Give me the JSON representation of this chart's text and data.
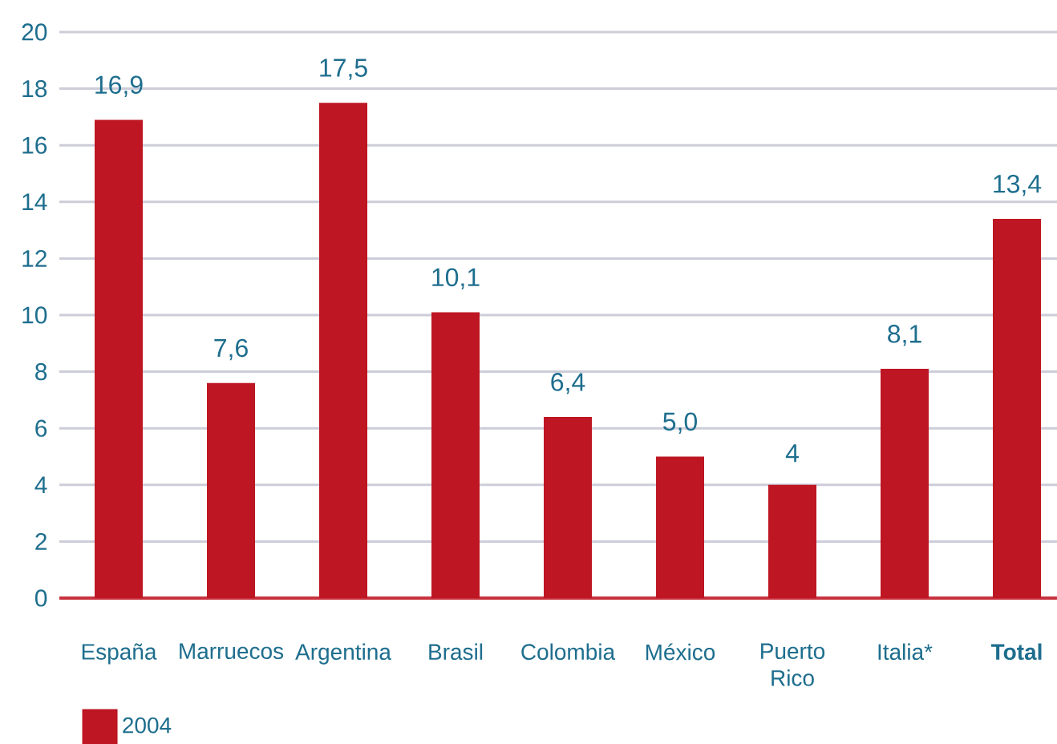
{
  "chart_data": {
    "type": "bar",
    "categories": [
      "España",
      "Marruecos",
      "Argentina",
      "Brasil",
      "Colombia",
      "México",
      "Puerto Rico",
      "Italia*",
      "**Total**"
    ],
    "series": [
      {
        "name": "2004",
        "color": "#be1622",
        "values": [
          16.9,
          7.6,
          17.5,
          10.1,
          6.4,
          5.0,
          4,
          8.1,
          13.4
        ],
        "value_labels": [
          "16,9",
          "7,6",
          "17,5",
          "10,1",
          "6,4",
          "5,0",
          "4",
          "8,1",
          "13,4"
        ]
      }
    ],
    "ylim": [
      0,
      20
    ],
    "yticks": [
      0,
      2,
      4,
      6,
      8,
      10,
      12,
      14,
      16,
      18,
      20
    ],
    "grid": "y",
    "legend": "bottom left"
  }
}
